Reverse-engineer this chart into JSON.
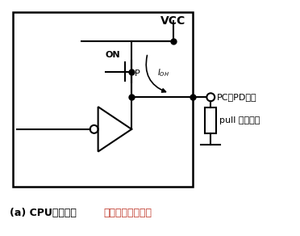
{
  "vcc_label": "VCC",
  "on_label": "ON",
  "p_label": "P",
  "pc_pd_label": "PC、PD端子",
  "pull_label": "pull 下拉电阵",
  "bg_color": "#ffffff",
  "line_color": "#000000",
  "text_color": "#000000",
  "red_color": "#c0392b",
  "caption_black": "(a) CPU输出高电",
  "caption_red": "平时的电流及负荷"
}
